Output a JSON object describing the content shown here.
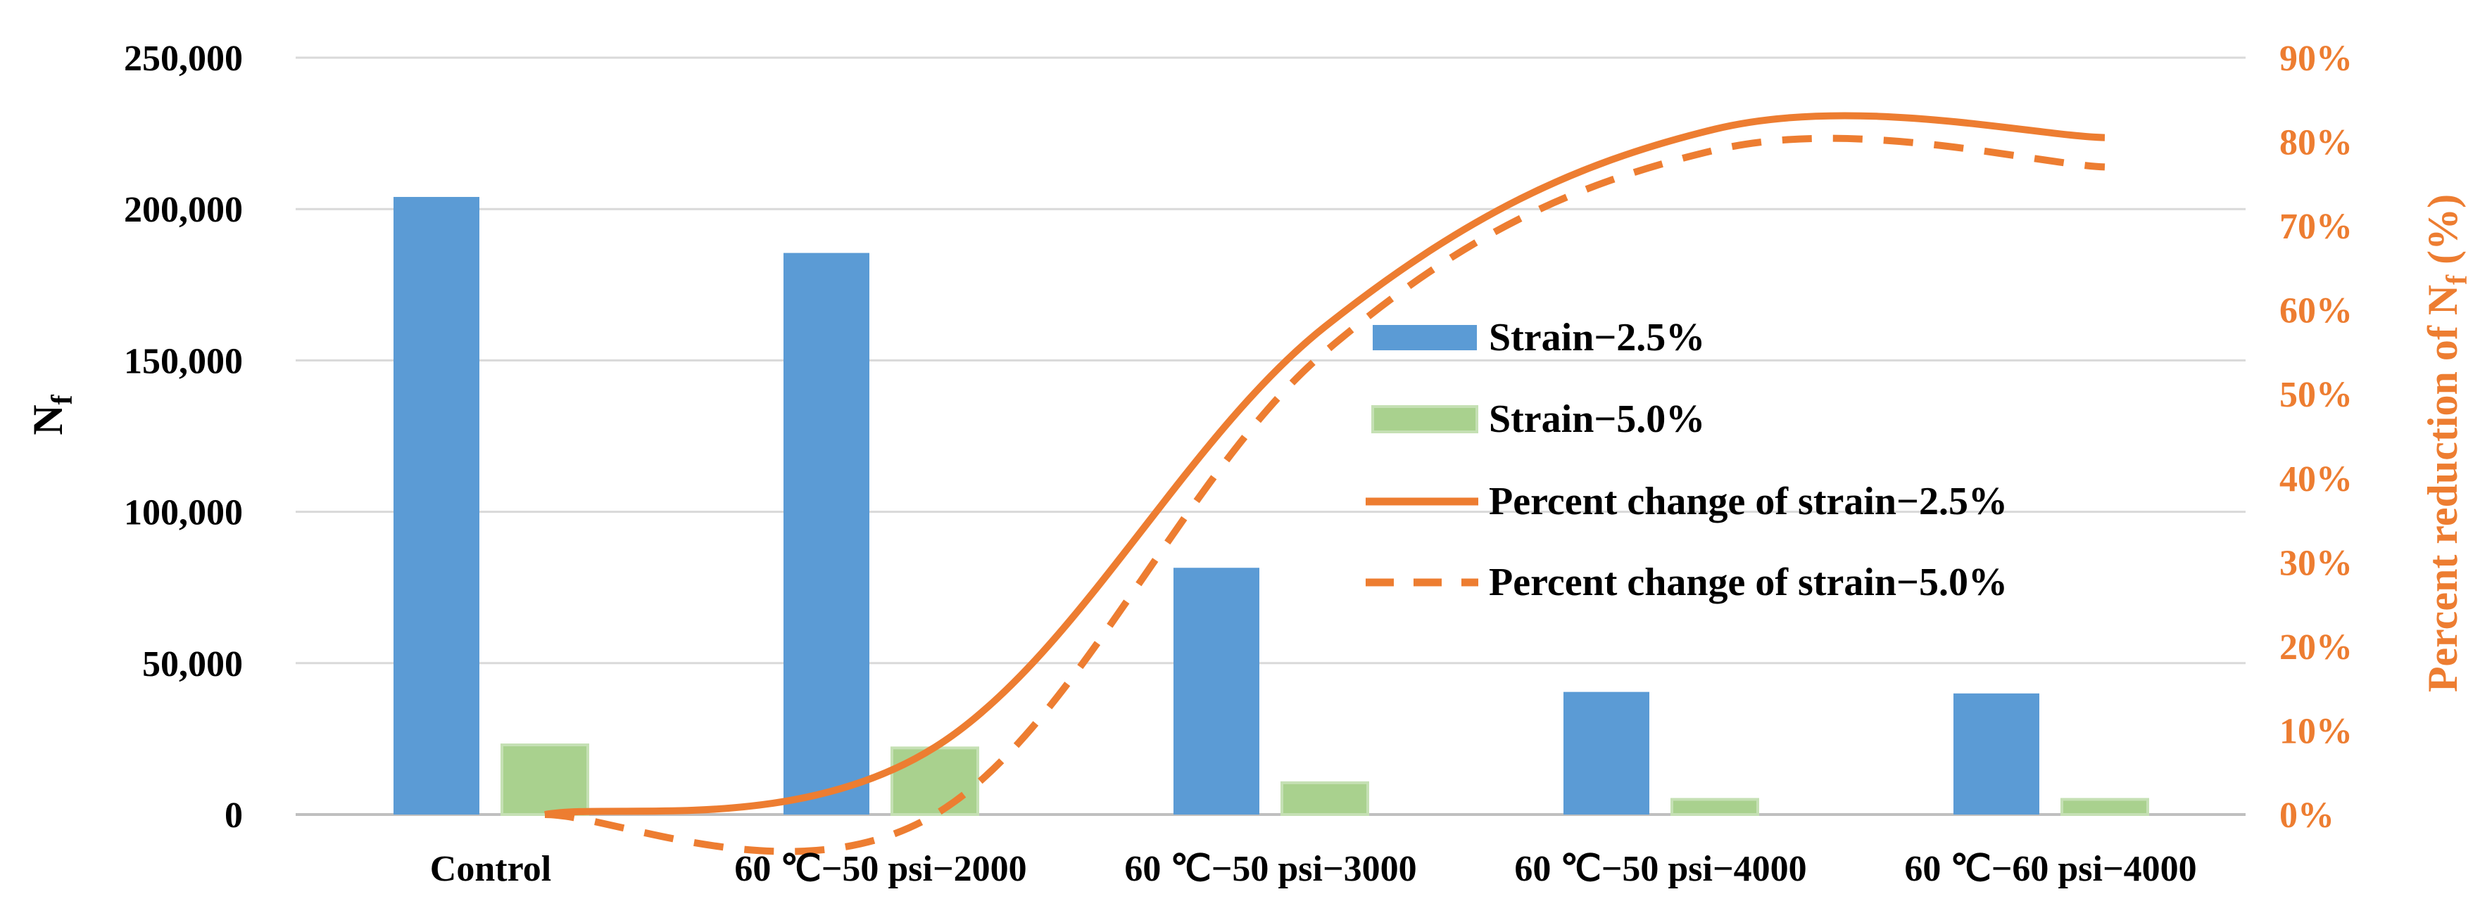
{
  "chart_data": {
    "type": "bar",
    "categories": [
      "Control",
      "60 ℃−50 psi−2000",
      "60 ℃−50 psi−3000",
      "60 ℃−50 psi−4000",
      "60 ℃−60 psi−4000"
    ],
    "series": [
      {
        "name": "Strain−2.5%",
        "kind": "bar",
        "axis": "left",
        "color": "#5B9BD5",
        "values": [
          204000,
          185500,
          81500,
          40500,
          40000
        ]
      },
      {
        "name": "Strain−5.0%",
        "kind": "bar",
        "axis": "left",
        "color": "#A9D18E",
        "values": [
          23000,
          22000,
          10500,
          5000,
          5000
        ]
      },
      {
        "name": "Percent change of strain−2.5%",
        "kind": "line",
        "style": "solid",
        "axis": "right",
        "color": "#ED7D31",
        "values": [
          0,
          8,
          58,
          81.5,
          80.5
        ]
      },
      {
        "name": "Percent change of strain−5.0%",
        "kind": "line",
        "style": "dashed",
        "axis": "right",
        "color": "#ED7D31",
        "values": [
          0,
          0,
          55,
          79,
          77
        ]
      }
    ],
    "y_axis_left": {
      "title_base": "N",
      "title_sub": "f",
      "range": [
        0,
        250000
      ],
      "tick_labels": [
        "0",
        "50,000",
        "100,000",
        "150,000",
        "200,000",
        "250,000"
      ],
      "tick_values": [
        0,
        50000,
        100000,
        150000,
        200000,
        250000
      ]
    },
    "y_axis_right": {
      "title_before": "Percent reduction of N",
      "title_sub": "f",
      "title_after": " (%)",
      "color": "#ED7D31",
      "range": [
        0,
        90
      ],
      "tick_labels": [
        "0%",
        "10%",
        "20%",
        "30%",
        "40%",
        "50%",
        "60%",
        "70%",
        "80%",
        "90%"
      ],
      "tick_values": [
        0,
        10,
        20,
        30,
        40,
        50,
        60,
        70,
        80,
        90
      ]
    },
    "grid": true,
    "legend_position": "center-right"
  }
}
